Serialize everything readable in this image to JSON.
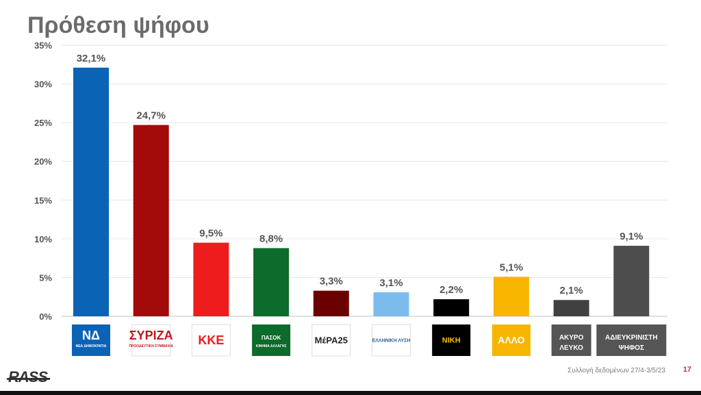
{
  "title": "Πρόθεση ψήφου",
  "chart_data": {
    "type": "bar",
    "categories": [
      "ΝΔ",
      "ΣΥΡΙΖΑ",
      "ΚΚΕ",
      "ΠΑΣΟΚ",
      "ΜέΡΑ25",
      "ΕΛΛΗΝΙΚΗ ΛΥΣΗ",
      "ΝΙΚΗ",
      "ΑΛΛΟ",
      "ΑΚΥΡΟ ΛΕΥΚΟ",
      "ΑΔΙΕΥΚΡΙΝΙΣΤΗ ΨΗΦΟΣ"
    ],
    "values": [
      32.1,
      24.7,
      9.5,
      8.8,
      3.3,
      3.1,
      2.2,
      5.1,
      2.1,
      9.1
    ],
    "data_labels": [
      "32,1%",
      "24,7%",
      "9,5%",
      "8,8%",
      "3,3%",
      "3,1%",
      "2,2%",
      "5,1%",
      "2,1%",
      "9,1%"
    ],
    "colors": [
      "#0b63b5",
      "#a30b0b",
      "#ee1c1c",
      "#0d6b2b",
      "#6b0000",
      "#7bbcec",
      "#000000",
      "#f7b500",
      "#404040",
      "#4d4d4d"
    ],
    "ylim": [
      0,
      35
    ],
    "yticks": [
      0,
      5,
      10,
      15,
      20,
      25,
      30,
      35
    ],
    "ytick_labels": [
      "0%",
      "5%",
      "10%",
      "15%",
      "20%",
      "25%",
      "30%",
      "35%"
    ],
    "grid": true,
    "legend": "none"
  },
  "logos": [
    {
      "name": "nd",
      "text": "ΝΔ",
      "sub": "ΝΕΑ ΔΗΜΟΚΡΑΤΙΑ",
      "bg": "#0b63b5",
      "fg": "#ffffff"
    },
    {
      "name": "syriza",
      "text": "ΣΥΡΙΖΑ",
      "sub": "ΠΡΟΟΔΕΥΤΙΚΗ ΣΥΜΜΑΧΙΑ",
      "bg": "#ffffff",
      "fg": "#c4161c"
    },
    {
      "name": "kke",
      "text": "ΚΚΕ",
      "sub": "",
      "bg": "#ffffff",
      "fg": "#ee1c1c"
    },
    {
      "name": "pasok",
      "text": "ΠΑΣΟΚ",
      "sub": "ΚΙΝΗΜΑ ΑΛΛΑΓΗΣ",
      "bg": "#0d6b2b",
      "fg": "#ffffff"
    },
    {
      "name": "mera25",
      "text": "ΜέΡΑ25",
      "sub": "",
      "bg": "#ffffff",
      "fg": "#222222"
    },
    {
      "name": "elliniki-lysi",
      "text": "ΕΛΛΗΝΙΚΗ ΛΥΣΗ",
      "sub": "",
      "bg": "#ffffff",
      "fg": "#2a5d9b"
    },
    {
      "name": "niki",
      "text": "ΝΙΚΗ",
      "sub": "",
      "bg": "#000000",
      "fg": "#f7c200"
    },
    {
      "name": "allo",
      "text": "ΑΛΛΟ",
      "sub": "",
      "bg": "#f7b500",
      "fg": "#ffffff"
    },
    {
      "name": "akyro-lefko",
      "text": "ΑΚΥΡΟ",
      "sub": "ΛΕΥΚΟ",
      "bg": "#555555",
      "fg": "#ffffff"
    },
    {
      "name": "adieykrinisti",
      "text": "ΑΔΙΕΥΚΡΙΝΙΣΤΗ",
      "sub": "ΨΗΦΟΣ",
      "bg": "#555555",
      "fg": "#ffffff"
    }
  ],
  "footer": {
    "brand": "RASS",
    "note": "Συλλογή δεδομένων 27/4-3/5/23",
    "page": "17"
  }
}
